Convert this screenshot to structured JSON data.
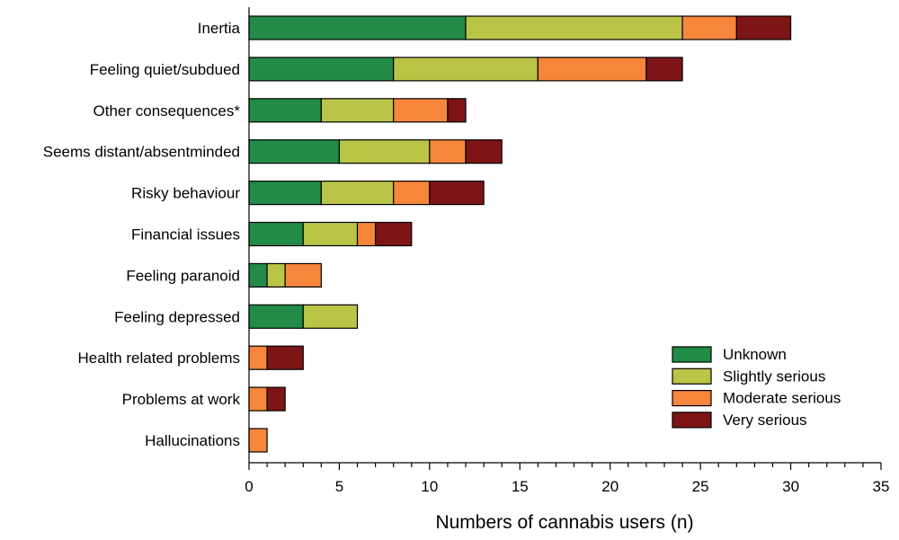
{
  "chart_data": {
    "type": "bar",
    "orientation": "horizontal",
    "stacked": true,
    "categories": [
      "Inertia",
      "Feeling quiet/subdued",
      "Other consequences*",
      "Seems distant/absentminded",
      "Risky behaviour",
      "Financial issues",
      "Feeling paranoid",
      "Feeling depressed",
      "Health related problems",
      "Problems at work",
      "Hallucinations"
    ],
    "series": [
      {
        "name": "Unknown",
        "color": "#228b47",
        "values": [
          12,
          8,
          4,
          5,
          4,
          3,
          1,
          3,
          0,
          0,
          0
        ]
      },
      {
        "name": "Slightly serious",
        "color": "#bac447",
        "values": [
          12,
          8,
          4,
          5,
          4,
          3,
          1,
          3,
          0,
          0,
          0
        ]
      },
      {
        "name": "Moderate serious",
        "color": "#f5863c",
        "values": [
          3,
          6,
          3,
          2,
          2,
          1,
          2,
          0,
          1,
          1,
          1
        ]
      },
      {
        "name": "Very serious",
        "color": "#7d1517",
        "values": [
          3,
          2,
          1,
          2,
          3,
          2,
          0,
          0,
          2,
          1,
          0
        ]
      }
    ],
    "title": "",
    "xlabel": "Numbers of cannabis users (n)",
    "ylabel": "",
    "xlim": [
      0,
      35
    ],
    "x_ticks": [
      "0",
      "5",
      "10",
      "15",
      "20",
      "25",
      "30",
      "35"
    ],
    "minor_tick_step": 1,
    "grid": false,
    "legend_position": "bottom-right"
  }
}
